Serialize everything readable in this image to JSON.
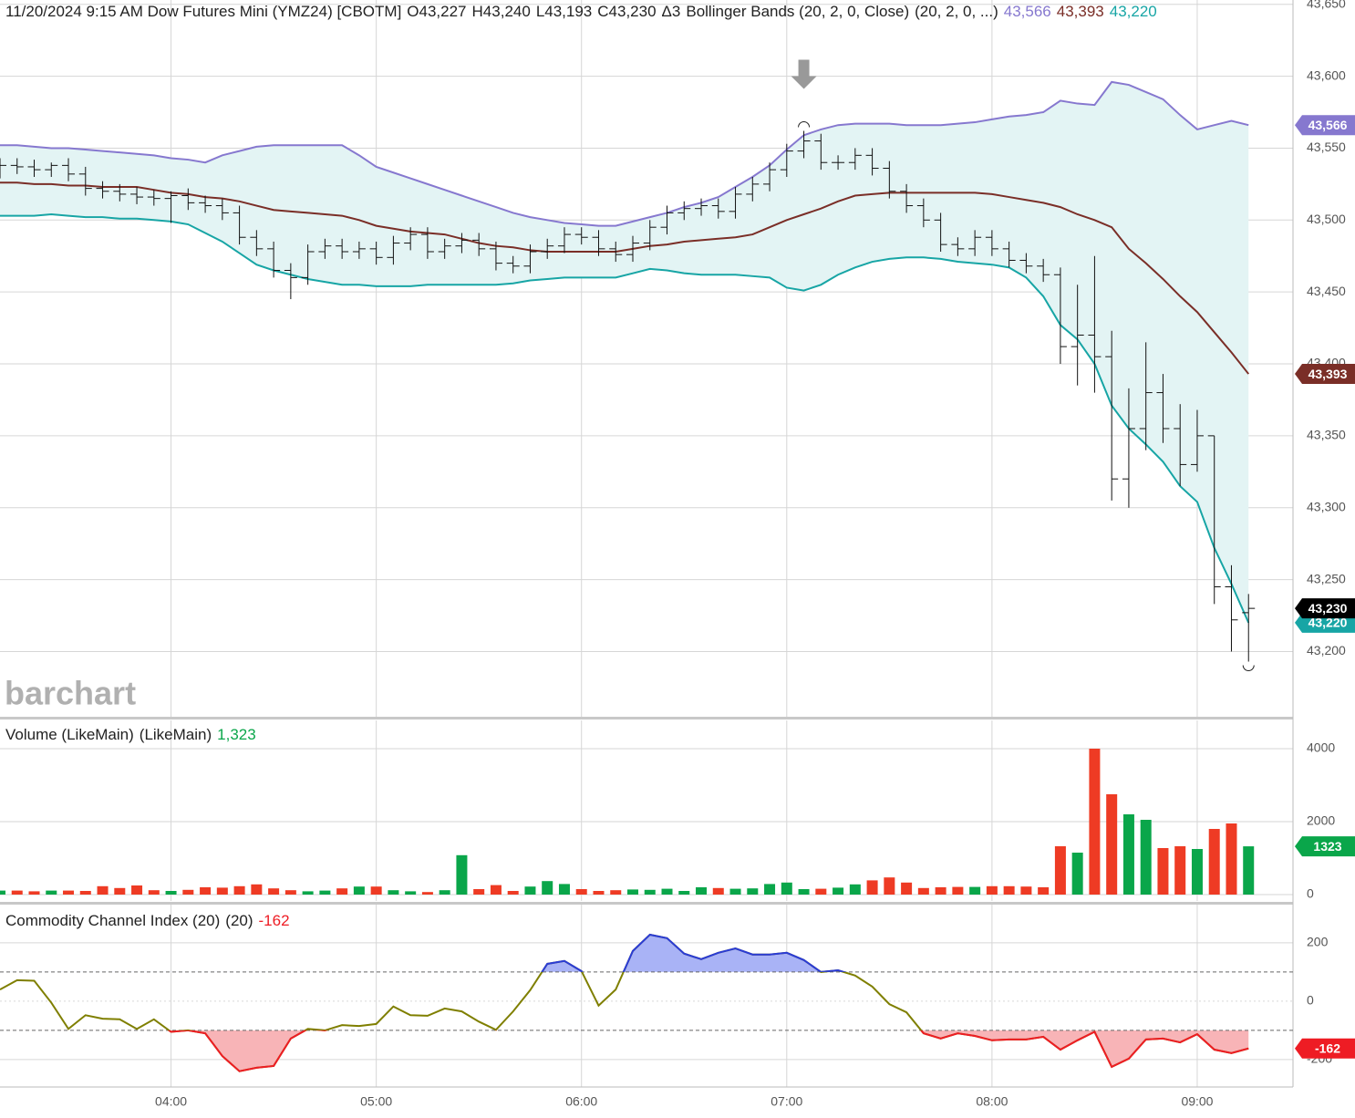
{
  "chart_data": [
    {
      "type": "ohlc",
      "title": "11/20/2024 9:15 AM Dow Futures Mini (YMZ24) [CBOTM]",
      "ohlc_labels": [
        "O43,227",
        "H43,240",
        "L43,193",
        "C43,230",
        "Δ3"
      ],
      "study": "Bollinger Bands (20, 2, 0, Close)",
      "study_params": "(20, 2, 0, ...)",
      "watermark": "barchart",
      "last_label": "43,230",
      "bar_color": "#111111",
      "band_fill": "#e3f4f4",
      "xlim": [
        190,
        568
      ],
      "xticks": [
        {
          "value": 240,
          "label": "04:00"
        },
        {
          "value": 300,
          "label": "05:00"
        },
        {
          "value": 360,
          "label": "06:00"
        },
        {
          "value": 420,
          "label": "07:00"
        },
        {
          "value": 480,
          "label": "08:00"
        },
        {
          "value": 540,
          "label": "09:00"
        }
      ],
      "ylim": [
        43154,
        43653
      ],
      "yticks": [
        {
          "value": 43200,
          "label": "43,200"
        },
        {
          "value": 43250,
          "label": "43,250"
        },
        {
          "value": 43300,
          "label": "43,300"
        },
        {
          "value": 43350,
          "label": "43,350"
        },
        {
          "value": 43400,
          "label": "43,400"
        },
        {
          "value": 43450,
          "label": "43,450"
        },
        {
          "value": 43500,
          "label": "43,500"
        },
        {
          "value": 43550,
          "label": "43,550"
        },
        {
          "value": 43600,
          "label": "43,600"
        },
        {
          "value": 43650,
          "label": "43,650"
        }
      ],
      "grid": true,
      "x": [
        190,
        195,
        200,
        205,
        210,
        215,
        220,
        225,
        230,
        235,
        240,
        245,
        250,
        255,
        260,
        265,
        270,
        275,
        280,
        285,
        290,
        295,
        300,
        305,
        310,
        315,
        320,
        325,
        330,
        335,
        340,
        345,
        350,
        355,
        360,
        365,
        370,
        375,
        380,
        385,
        390,
        395,
        400,
        405,
        410,
        415,
        420,
        425,
        430,
        435,
        440,
        445,
        450,
        455,
        460,
        465,
        470,
        475,
        480,
        485,
        490,
        495,
        500,
        505,
        510,
        515,
        520,
        525,
        530,
        535,
        540,
        545,
        550,
        555
      ],
      "open": [
        43534,
        43538,
        43537,
        43535,
        43538,
        43532,
        43522,
        43520,
        43518,
        43516,
        43515,
        43517,
        43512,
        43510,
        43505,
        43488,
        43480,
        43465,
        43460,
        43478,
        43482,
        43478,
        43480,
        43474,
        43484,
        43490,
        43478,
        43482,
        43486,
        43480,
        43470,
        43468,
        43478,
        43482,
        43490,
        43488,
        43480,
        43476,
        43484,
        43495,
        43505,
        43508,
        43510,
        43506,
        43518,
        43525,
        43535,
        43548,
        43555,
        43540,
        43540,
        43545,
        43536,
        43520,
        43510,
        43500,
        43483,
        43480,
        43488,
        43480,
        43472,
        43468,
        43462,
        43412,
        43420,
        43405,
        43320,
        43355,
        43380,
        43355,
        43330,
        43350,
        43245,
        43227
      ],
      "high": [
        43543,
        43543,
        43542,
        43540,
        43543,
        43537,
        43527,
        43525,
        43523,
        43521,
        43520,
        43522,
        43517,
        43515,
        43510,
        43493,
        43485,
        43470,
        43483,
        43487,
        43487,
        43485,
        43485,
        43489,
        43495,
        43495,
        43487,
        43491,
        43491,
        43485,
        43475,
        43483,
        43487,
        43495,
        43495,
        43493,
        43485,
        43489,
        43500,
        43510,
        43513,
        43515,
        43515,
        43523,
        43530,
        43540,
        43553,
        43562,
        43560,
        43545,
        43550,
        43550,
        43541,
        43525,
        43515,
        43505,
        43488,
        43493,
        43493,
        43485,
        43477,
        43473,
        43467,
        43455,
        43475,
        43423,
        43383,
        43415,
        43393,
        43372,
        43368,
        43350,
        43260,
        43240
      ],
      "low": [
        43529,
        43532,
        43530,
        43530,
        43527,
        43517,
        43515,
        43513,
        43511,
        43510,
        43498,
        43507,
        43505,
        43500,
        43483,
        43475,
        43460,
        43445,
        43455,
        43473,
        43473,
        43473,
        43469,
        43469,
        43479,
        43473,
        43473,
        43477,
        43475,
        43465,
        43463,
        43463,
        43473,
        43477,
        43483,
        43475,
        43471,
        43471,
        43479,
        43490,
        43500,
        43503,
        43501,
        43501,
        43513,
        43520,
        43530,
        43543,
        43535,
        43535,
        43535,
        43531,
        43515,
        43505,
        43495,
        43478,
        43475,
        43475,
        43475,
        43467,
        43463,
        43457,
        43400,
        43385,
        43380,
        43305,
        43300,
        43340,
        43345,
        43315,
        43325,
        43233,
        43200,
        43193
      ],
      "close": [
        43538,
        43537,
        43535,
        43538,
        43532,
        43522,
        43520,
        43518,
        43516,
        43515,
        43517,
        43512,
        43510,
        43505,
        43488,
        43480,
        43465,
        43460,
        43478,
        43482,
        43478,
        43480,
        43474,
        43484,
        43490,
        43478,
        43482,
        43486,
        43480,
        43470,
        43468,
        43478,
        43482,
        43490,
        43488,
        43480,
        43476,
        43484,
        43495,
        43505,
        43508,
        43510,
        43506,
        43518,
        43525,
        43535,
        43548,
        43555,
        43540,
        43540,
        43545,
        43536,
        43520,
        43510,
        43500,
        43483,
        43480,
        43488,
        43480,
        43472,
        43468,
        43462,
        43412,
        43420,
        43405,
        43320,
        43355,
        43380,
        43355,
        43330,
        43350,
        43245,
        43222,
        43230
      ],
      "series": [
        {
          "color": "#8678cf",
          "last_label": "43,566",
          "values": [
            43552,
            43552,
            43551,
            43550,
            43550,
            43549,
            43548,
            43547,
            43546,
            43545,
            43543,
            43542,
            43540,
            43545,
            43548,
            43551,
            43552,
            43552,
            43552,
            43552,
            43552,
            43545,
            43537,
            43533,
            43529,
            43525,
            43521,
            43517,
            43513,
            43509,
            43505,
            43502,
            43500,
            43498,
            43497,
            43496,
            43496,
            43499,
            43502,
            43505,
            43509,
            43512,
            43516,
            43523,
            43530,
            43538,
            43549,
            43559,
            43563,
            43566,
            43567,
            43567,
            43567,
            43566,
            43566,
            43566,
            43567,
            43568,
            43570,
            43572,
            43573,
            43575,
            43583,
            43581,
            43580,
            43596,
            43594,
            43589,
            43584,
            43573,
            43563,
            43566,
            43569,
            43566
          ]
        },
        {
          "color": "#7a2e27",
          "last_label": "43,393",
          "values": [
            43526,
            43526,
            43525,
            43525,
            43524,
            43524,
            43523,
            43523,
            43523,
            43521,
            43519,
            43518,
            43516,
            43515,
            43513,
            43510,
            43507,
            43506,
            43505,
            43504,
            43503,
            43500,
            43496,
            43494,
            43492,
            43491,
            43490,
            43487,
            43484,
            43482,
            43481,
            43479,
            43478,
            43478,
            43478,
            43478,
            43478,
            43480,
            43482,
            43483,
            43485,
            43486,
            43487,
            43488,
            43490,
            43495,
            43500,
            43504,
            43508,
            43513,
            43517,
            43518,
            43519,
            43519,
            43519,
            43519,
            43519,
            43519,
            43518,
            43516,
            43514,
            43512,
            43509,
            43504,
            43500,
            43495,
            43480,
            43470,
            43459,
            43447,
            43436,
            43422,
            43408,
            43393
          ]
        },
        {
          "color": "#17a5a5",
          "last_label": "43,220",
          "values": [
            43503,
            43503,
            43503,
            43504,
            43503,
            43502,
            43502,
            43501,
            43501,
            43500,
            43499,
            43497,
            43491,
            43485,
            43477,
            43469,
            43465,
            43462,
            43459,
            43457,
            43455,
            43455,
            43454,
            43454,
            43454,
            43455,
            43455,
            43455,
            43455,
            43455,
            43456,
            43458,
            43459,
            43460,
            43460,
            43460,
            43460,
            43463,
            43466,
            43465,
            43463,
            43462,
            43462,
            43462,
            43461,
            43460,
            43453,
            43451,
            43455,
            43462,
            43467,
            43471,
            43473,
            43474,
            43474,
            43473,
            43471,
            43470,
            43469,
            43467,
            43460,
            43447,
            43427,
            43417,
            43400,
            43371,
            43355,
            43344,
            43332,
            43315,
            43304,
            43272,
            43247,
            43220
          ]
        }
      ]
    },
    {
      "type": "bar",
      "title": "Volume (LikeMain)",
      "params": "(LikeMain)",
      "last_label": "1,323",
      "badge_label": "1323",
      "up_color": "#0aa64a",
      "down_color": "#ee3b24",
      "ylim": [
        -175,
        4775
      ],
      "yticks": [
        0,
        2000,
        4000
      ],
      "values": [
        110,
        110,
        90,
        110,
        110,
        100,
        230,
        180,
        250,
        120,
        100,
        130,
        200,
        190,
        230,
        280,
        170,
        120,
        90,
        110,
        170,
        220,
        220,
        120,
        90,
        70,
        120,
        1080,
        150,
        260,
        100,
        220,
        370,
        290,
        150,
        100,
        120,
        140,
        130,
        160,
        100,
        200,
        180,
        160,
        170,
        290,
        330,
        150,
        160,
        190,
        280,
        390,
        470,
        330,
        180,
        200,
        210,
        210,
        230,
        230,
        220,
        200,
        1325,
        1150,
        4000,
        2750,
        2200,
        2050,
        1275,
        1325,
        1250,
        1800,
        1950,
        1323
      ]
    },
    {
      "type": "line",
      "title": "Commodity Channel Index (20)",
      "params": "(20)",
      "last_label": "-162",
      "color": "#7f7f00",
      "above_color": "#2a3bd6",
      "below_color": "#ee1c24",
      "above_fill": "#a9b3f6",
      "below_fill": "#f8b4b7",
      "levels": [
        100,
        -100
      ],
      "ylim": [
        -294,
        331
      ],
      "yticks": [
        -200,
        0,
        200
      ],
      "values": [
        40,
        72,
        70,
        -5,
        -95,
        -48,
        -60,
        -62,
        -95,
        -62,
        -105,
        -100,
        -110,
        -188,
        -240,
        -228,
        -222,
        -128,
        -95,
        -100,
        -82,
        -85,
        -78,
        -18,
        -48,
        -50,
        -25,
        -35,
        -70,
        -98,
        -35,
        38,
        128,
        138,
        103,
        -15,
        40,
        172,
        228,
        216,
        163,
        144,
        166,
        181,
        160,
        160,
        166,
        141,
        100,
        106,
        88,
        50,
        -10,
        -38,
        -110,
        -128,
        -110,
        -119,
        -134,
        -131,
        -131,
        -122,
        -166,
        -134,
        -105,
        -225,
        -197,
        -131,
        -128,
        -141,
        -113,
        -166,
        -178,
        -162
      ]
    }
  ]
}
